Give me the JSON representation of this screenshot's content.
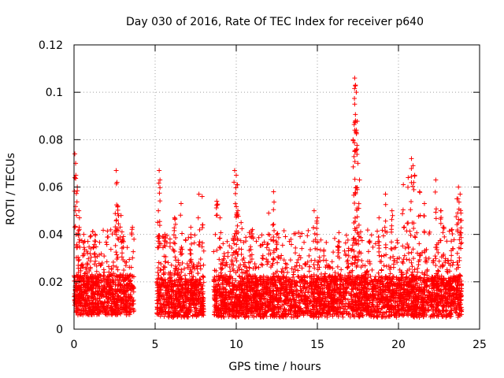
{
  "chart_data": {
    "type": "scatter",
    "title": "Day 030 of 2016, Rate Of TEC Index for receiver p640",
    "xlabel": "GPS time / hours",
    "ylabel": "ROTI / TECUs",
    "xlim": [
      0,
      25
    ],
    "ylim": [
      0,
      0.12
    ],
    "xticks": [
      0,
      5,
      10,
      15,
      20,
      25
    ],
    "xtick_labels": [
      "0",
      "5",
      "10",
      "15",
      "20",
      "25"
    ],
    "yticks": [
      0,
      0.02,
      0.04,
      0.06,
      0.08,
      0.1,
      0.12
    ],
    "ytick_labels": [
      "0",
      "0.02",
      "0.04",
      "0.06",
      "0.08",
      "0.1",
      "0.12"
    ],
    "grid": true,
    "marker": "+",
    "series_color": "#ff0000",
    "data_segments": [
      {
        "start": 0.0,
        "end": 3.7,
        "typical": [
          0.006,
          0.03
        ],
        "spikes": [
          [
            0.05,
            0.074
          ],
          [
            0.1,
            0.07
          ],
          [
            0.2,
            0.06
          ],
          [
            0.3,
            0.05
          ],
          [
            0.6,
            0.04
          ],
          [
            1.3,
            0.04
          ],
          [
            2.6,
            0.067
          ],
          [
            2.65,
            0.062
          ],
          [
            2.7,
            0.052
          ],
          [
            2.9,
            0.048
          ],
          [
            3.0,
            0.038
          ],
          [
            3.6,
            0.043
          ]
        ]
      },
      {
        "start": 5.1,
        "end": 8.0,
        "typical": [
          0.005,
          0.028
        ],
        "spikes": [
          [
            5.25,
            0.067
          ],
          [
            5.3,
            0.063
          ],
          [
            5.2,
            0.05
          ],
          [
            5.6,
            0.04
          ],
          [
            6.2,
            0.047
          ],
          [
            6.6,
            0.053
          ],
          [
            7.2,
            0.043
          ],
          [
            7.7,
            0.057
          ],
          [
            7.9,
            0.056
          ]
        ]
      },
      {
        "start": 8.6,
        "end": 23.9,
        "typical": [
          0.005,
          0.03
        ],
        "spikes": [
          [
            8.8,
            0.054
          ],
          [
            9.0,
            0.047
          ],
          [
            9.9,
            0.067
          ],
          [
            10.0,
            0.065
          ],
          [
            10.05,
            0.061
          ],
          [
            10.1,
            0.05
          ],
          [
            10.3,
            0.045
          ],
          [
            11.0,
            0.042
          ],
          [
            12.0,
            0.049
          ],
          [
            12.3,
            0.058
          ],
          [
            12.5,
            0.04
          ],
          [
            14.8,
            0.05
          ],
          [
            15.0,
            0.047
          ],
          [
            16.3,
            0.037
          ],
          [
            17.3,
            0.106
          ],
          [
            17.35,
            0.103
          ],
          [
            17.4,
            0.1
          ],
          [
            17.3,
            0.095
          ],
          [
            17.35,
            0.088
          ],
          [
            17.4,
            0.084
          ],
          [
            17.2,
            0.08
          ],
          [
            17.3,
            0.075
          ],
          [
            17.5,
            0.07
          ],
          [
            17.6,
            0.063
          ],
          [
            18.8,
            0.047
          ],
          [
            19.2,
            0.057
          ],
          [
            19.6,
            0.05
          ],
          [
            20.3,
            0.061
          ],
          [
            20.6,
            0.064
          ],
          [
            20.8,
            0.072
          ],
          [
            20.9,
            0.069
          ],
          [
            21.0,
            0.065
          ],
          [
            21.3,
            0.058
          ],
          [
            21.6,
            0.053
          ],
          [
            22.3,
            0.063
          ],
          [
            22.6,
            0.05
          ],
          [
            22.8,
            0.043
          ],
          [
            23.3,
            0.042
          ],
          [
            23.6,
            0.055
          ],
          [
            23.7,
            0.06
          ],
          [
            23.8,
            0.057
          ],
          [
            23.85,
            0.049
          ]
        ]
      }
    ]
  }
}
